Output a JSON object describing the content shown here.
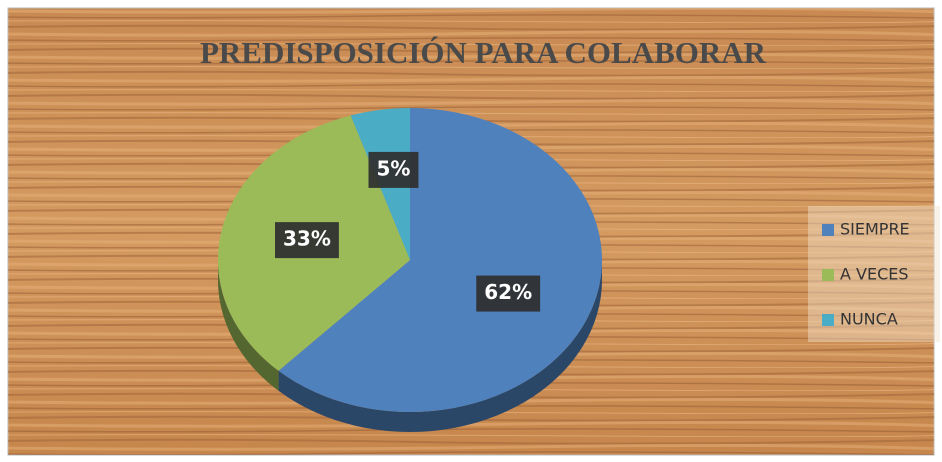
{
  "chart_data": {
    "type": "pie",
    "title": "PREDISPOSICIÓN PARA COLABORAR",
    "categories": [
      "SIEMPRE",
      "A VECES",
      "NUNCA"
    ],
    "values": [
      62,
      33,
      5
    ],
    "value_labels": [
      "62%",
      "33%",
      "5%"
    ],
    "colors": [
      "#4f81bd",
      "#9bbb59",
      "#4bacc6"
    ],
    "legend": "right"
  }
}
